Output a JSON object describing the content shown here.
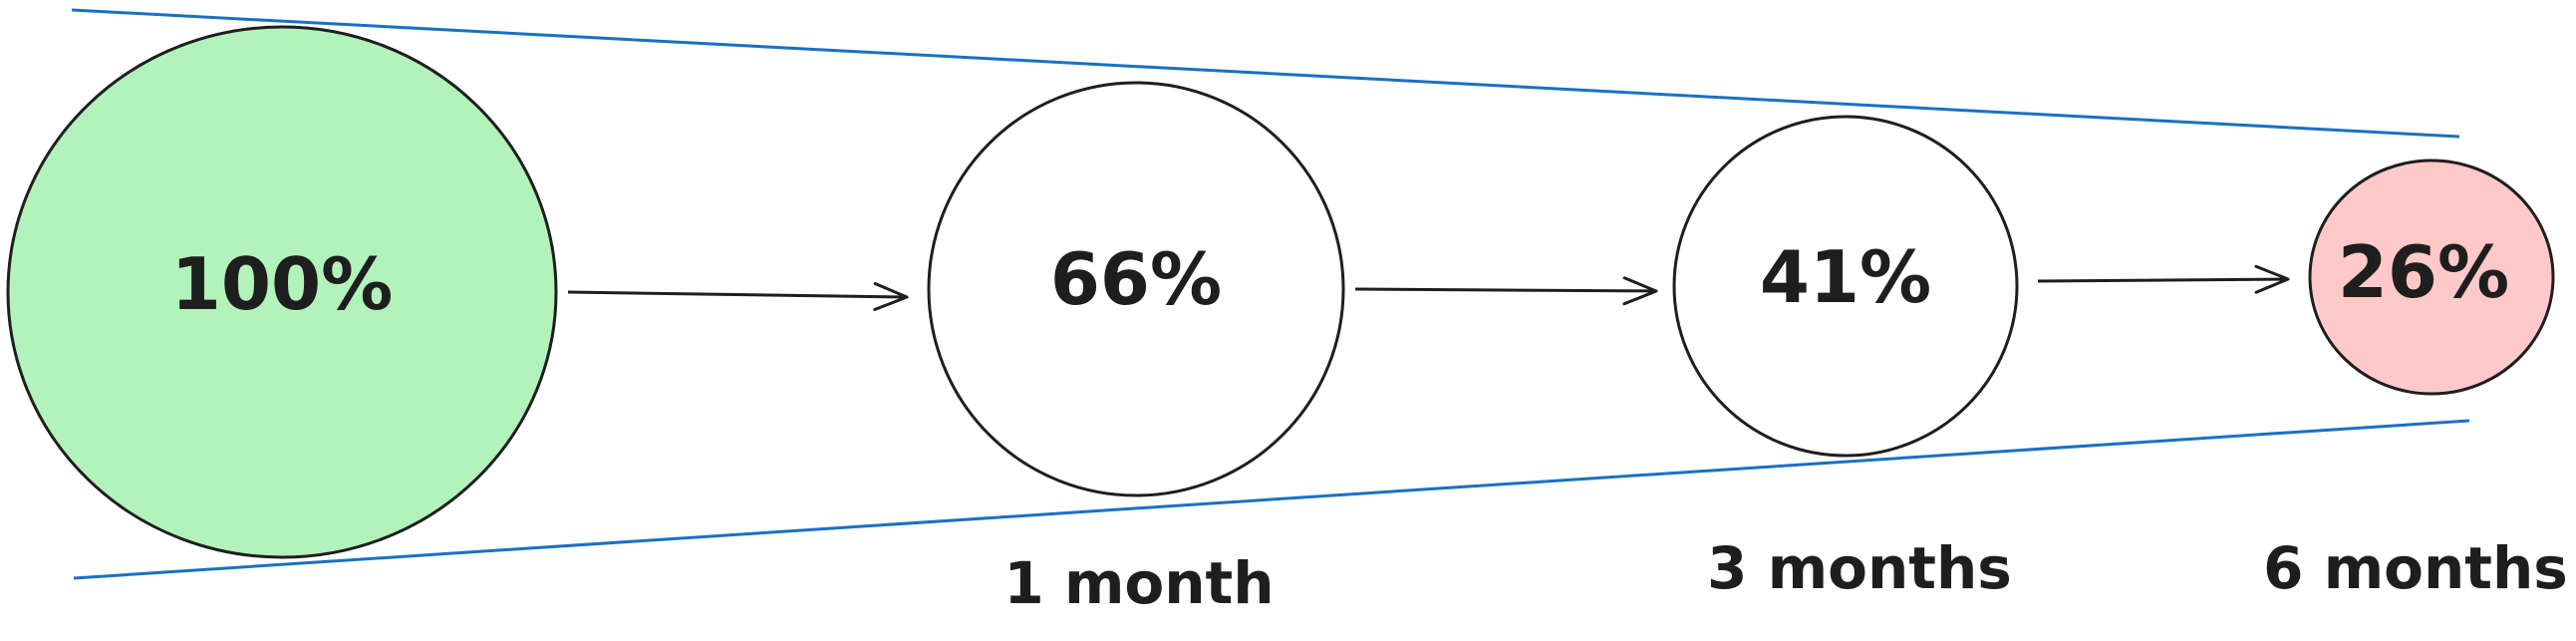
{
  "colors": {
    "stroke": "#1e1e1e",
    "funnel_line": "#1971c2",
    "start_fill": "#b2f2bb",
    "end_fill": "#ffc9c9",
    "neutral_fill": "#ffffff"
  },
  "nodes": [
    {
      "value": "100%",
      "period": ""
    },
    {
      "value": "66%",
      "period": "1 month"
    },
    {
      "value": "41%",
      "period": "3 months"
    },
    {
      "value": "26%",
      "period": "6 months"
    }
  ]
}
